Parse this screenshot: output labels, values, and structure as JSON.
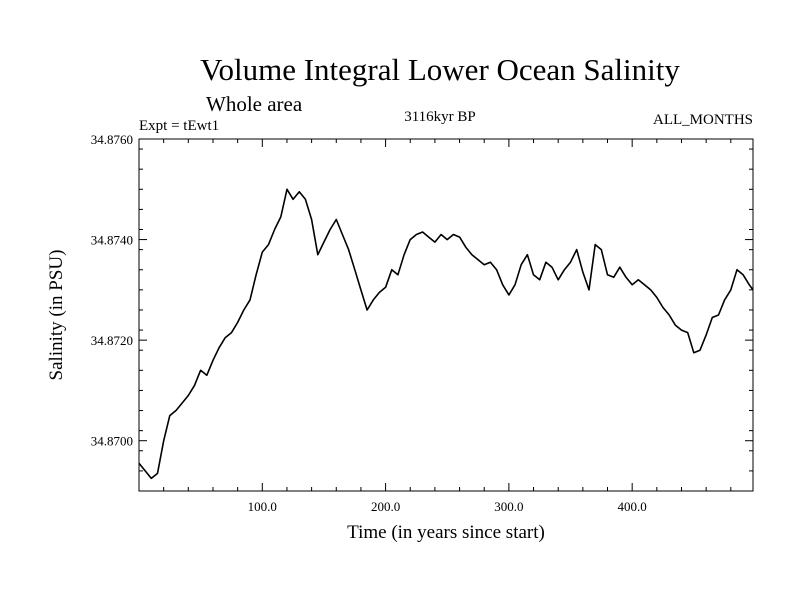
{
  "chart_data": {
    "type": "line",
    "title": "Volume Integral Lower Ocean Salinity",
    "subtitle": "Whole area",
    "experiment": "Expt = tEwt1",
    "period": "3116kyr BP",
    "months": "ALL_MONTHS",
    "xlabel": "Time (in years since start)",
    "ylabel": "Salinity (in PSU)",
    "xlim": [
      0,
      498
    ],
    "ylim": [
      34.869,
      34.876
    ],
    "xticks": [
      100,
      200,
      300,
      400
    ],
    "xtick_labels": [
      "100.0",
      "200.0",
      "300.0",
      "400.0"
    ],
    "yticks": [
      34.87,
      34.872,
      34.874,
      34.876
    ],
    "ytick_labels": [
      "34.8700",
      "34.8720",
      "34.8740",
      "34.8760"
    ],
    "grid": false,
    "series": [
      {
        "name": "salinity",
        "x": [
          0,
          5,
          10,
          15,
          20,
          25,
          30,
          35,
          40,
          45,
          50,
          55,
          60,
          65,
          70,
          75,
          80,
          85,
          90,
          95,
          100,
          105,
          110,
          115,
          120,
          125,
          130,
          135,
          140,
          145,
          150,
          155,
          160,
          165,
          170,
          175,
          180,
          185,
          190,
          195,
          200,
          205,
          210,
          215,
          220,
          225,
          230,
          235,
          240,
          245,
          250,
          255,
          260,
          265,
          270,
          275,
          280,
          285,
          290,
          295,
          300,
          305,
          310,
          315,
          320,
          325,
          330,
          335,
          340,
          345,
          350,
          355,
          360,
          365,
          370,
          375,
          380,
          385,
          390,
          395,
          400,
          405,
          410,
          415,
          420,
          425,
          430,
          435,
          440,
          445,
          450,
          455,
          460,
          465,
          470,
          475,
          480,
          485,
          490,
          495,
          498
        ],
        "y": [
          34.86955,
          34.8694,
          34.86925,
          34.86935,
          34.87,
          34.8705,
          34.8706,
          34.87075,
          34.8709,
          34.8711,
          34.8714,
          34.8713,
          34.8716,
          34.87185,
          34.87205,
          34.87215,
          34.87235,
          34.8726,
          34.8728,
          34.8733,
          34.87375,
          34.8739,
          34.8742,
          34.87445,
          34.875,
          34.8748,
          34.87495,
          34.8748,
          34.8744,
          34.8737,
          34.87395,
          34.8742,
          34.8744,
          34.8741,
          34.8738,
          34.8734,
          34.873,
          34.8726,
          34.8728,
          34.87295,
          34.87305,
          34.8734,
          34.8733,
          34.8737,
          34.874,
          34.8741,
          34.87415,
          34.87405,
          34.87395,
          34.8741,
          34.874,
          34.8741,
          34.87405,
          34.87385,
          34.8737,
          34.8736,
          34.8735,
          34.87355,
          34.8734,
          34.8731,
          34.8729,
          34.8731,
          34.8735,
          34.8737,
          34.8733,
          34.8732,
          34.87355,
          34.87345,
          34.8732,
          34.8734,
          34.87355,
          34.8738,
          34.87335,
          34.873,
          34.8739,
          34.8738,
          34.8733,
          34.87325,
          34.87345,
          34.87325,
          34.8731,
          34.8732,
          34.8731,
          34.873,
          34.87285,
          34.87265,
          34.8725,
          34.8723,
          34.8722,
          34.87215,
          34.87175,
          34.8718,
          34.8721,
          34.87245,
          34.8725,
          34.8728,
          34.873,
          34.8734,
          34.8733,
          34.8731,
          34.873
        ]
      }
    ]
  }
}
